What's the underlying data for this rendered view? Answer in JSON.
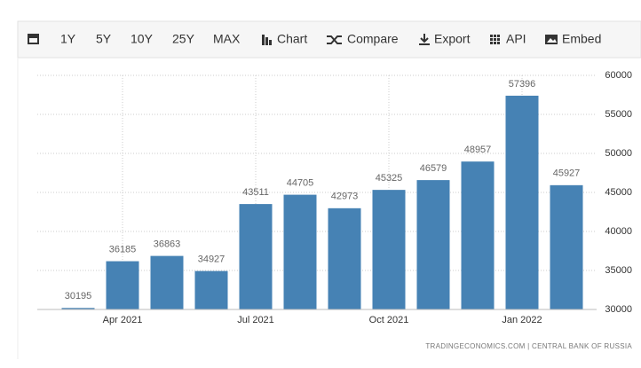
{
  "toolbar": [
    "1Y",
    "5Y",
    "10Y",
    "25Y",
    "MAX",
    "Chart",
    "Compare",
    "Export",
    "API",
    "Embed"
  ],
  "chart_data": {
    "type": "bar",
    "categories": [
      null,
      "Apr 2021",
      null,
      null,
      "Jul 2021",
      null,
      null,
      "Oct 2021",
      null,
      null,
      "Jan 2022",
      null
    ],
    "values": [
      30195,
      36185,
      36863,
      34927,
      43511,
      44705,
      42973,
      45325,
      46579,
      48957,
      57396,
      45927
    ],
    "color": "#4682b4",
    "ylim": [
      30000,
      60000
    ],
    "yticks": [
      30000,
      35000,
      40000,
      45000,
      50000,
      55000,
      60000
    ],
    "grid": true,
    "source": "TRADINGECONOMICS.COM  |  CENTRAL BANK OF RUSSIA"
  }
}
